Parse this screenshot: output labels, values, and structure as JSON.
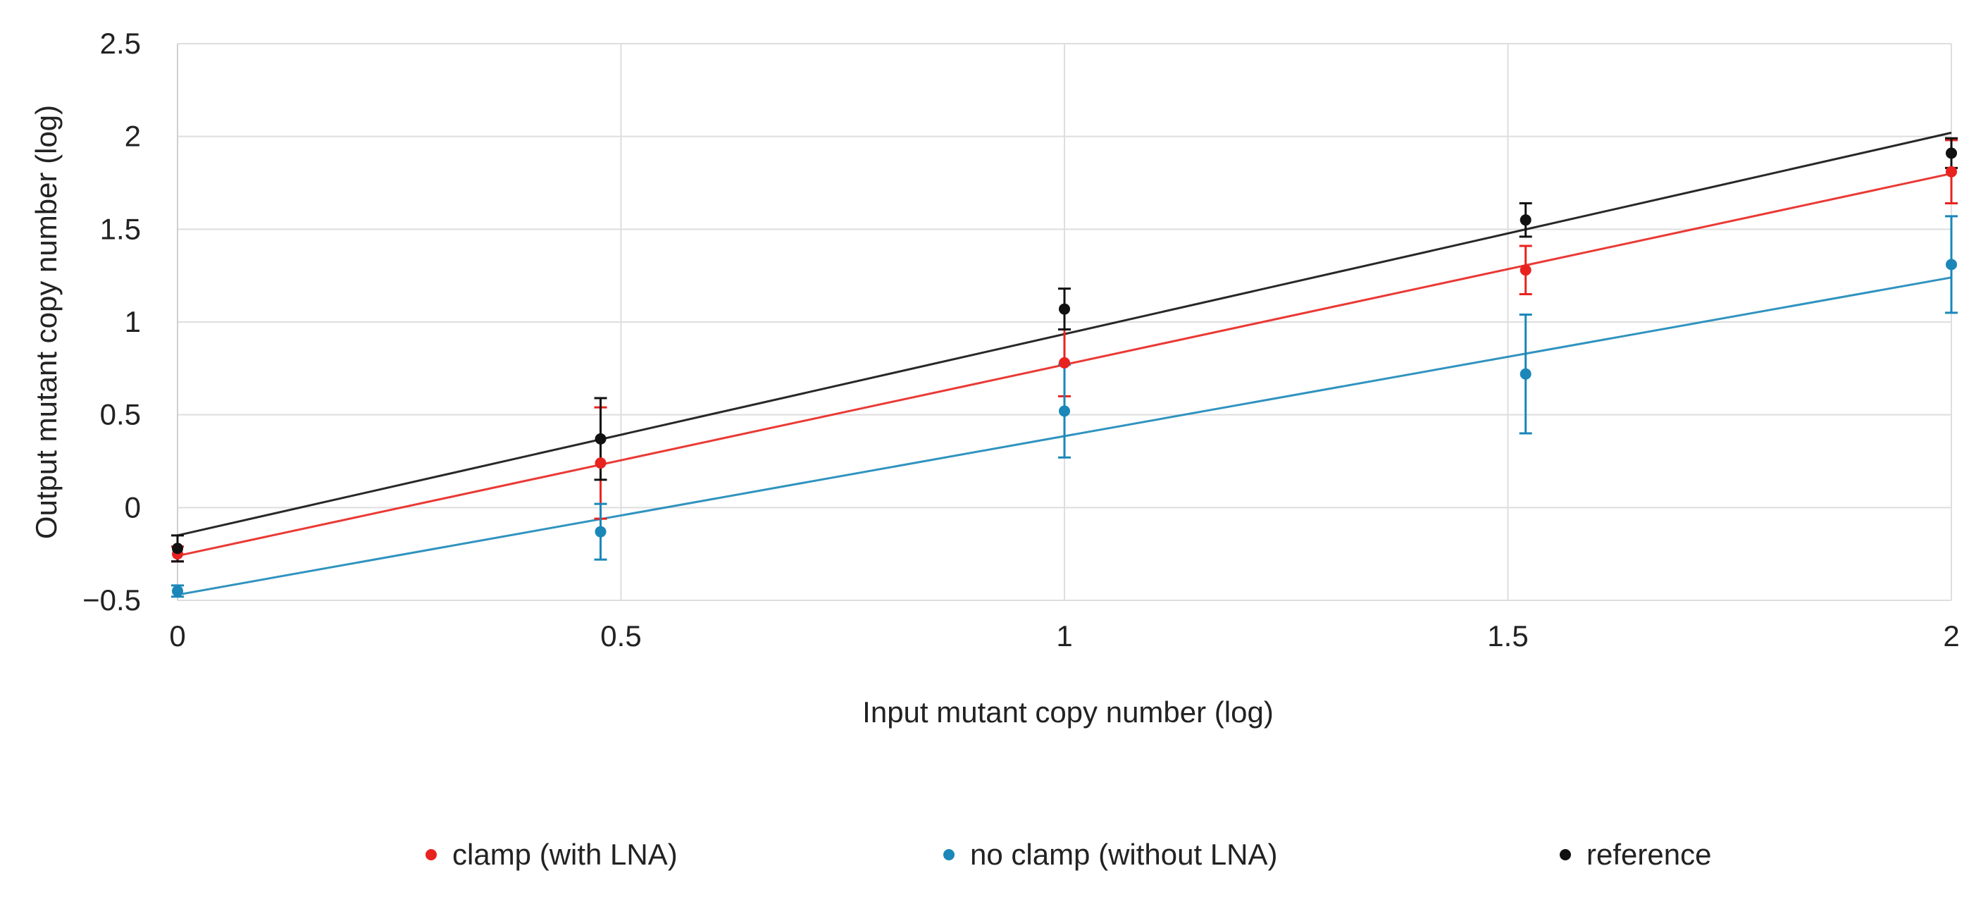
{
  "chart_data": {
    "type": "scatter",
    "title": "",
    "xlabel": "Input mutant copy number (log)",
    "ylabel": "Output mutant copy number (log)",
    "xlim": [
      0,
      2
    ],
    "ylim": [
      -0.5,
      2.5
    ],
    "x_ticks": [
      0,
      0.5,
      1,
      1.5,
      2
    ],
    "x_tick_labels": [
      "0",
      "0.5",
      "1",
      "1.5",
      "2"
    ],
    "y_ticks": [
      -0.5,
      0,
      0.5,
      1,
      1.5,
      2,
      2.5
    ],
    "y_tick_labels": [
      "−0.5",
      "0",
      "0.5",
      "1",
      "1.5",
      "2",
      "2.5"
    ],
    "grid": true,
    "legend_position": "bottom",
    "series": [
      {
        "name": "clamp (with LNA)",
        "color": "#e8231f",
        "x": [
          0,
          0.477,
          1,
          1.52,
          2
        ],
        "y": [
          -0.25,
          0.24,
          0.78,
          1.28,
          1.81
        ],
        "error": [
          0.04,
          0.3,
          0.18,
          0.13,
          0.17
        ],
        "trendline": {
          "intercept": -0.26,
          "slope": 1.03
        }
      },
      {
        "name": "no clamp (without LNA)",
        "color": "#1a87b8",
        "x": [
          0,
          0.477,
          1,
          1.52,
          2
        ],
        "y": [
          -0.45,
          -0.13,
          0.52,
          0.72,
          1.31
        ],
        "error": [
          0.03,
          0.15,
          0.25,
          0.32,
          0.26
        ],
        "trendline": {
          "intercept": -0.47,
          "slope": 0.855
        }
      },
      {
        "name": "reference",
        "color": "#111111",
        "x": [
          0,
          0.477,
          1,
          1.52,
          2
        ],
        "y": [
          -0.22,
          0.37,
          1.07,
          1.55,
          1.91
        ],
        "error": [
          0.07,
          0.22,
          0.11,
          0.09,
          0.08
        ],
        "trendline": {
          "intercept": -0.15,
          "slope": 1.085
        }
      }
    ]
  }
}
